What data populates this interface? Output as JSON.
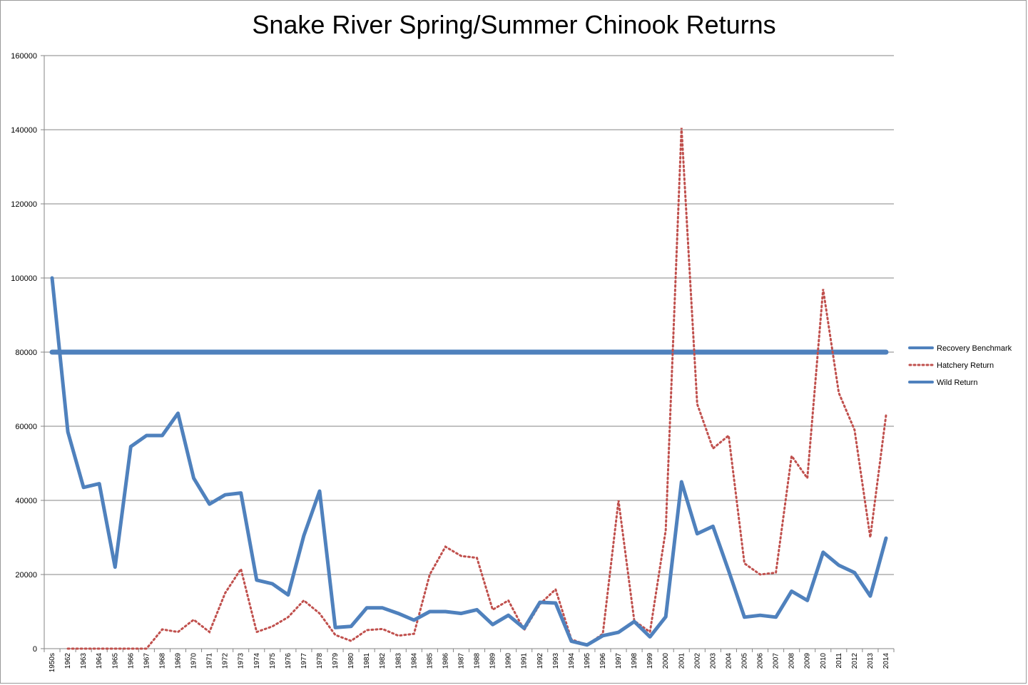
{
  "chart_data": {
    "type": "line",
    "title": "Snake River Spring/Summer Chinook Returns",
    "xlabel": "",
    "ylabel": "",
    "ylim": [
      0,
      160000
    ],
    "yticks": [
      "0",
      "20000",
      "40000",
      "60000",
      "80000",
      "100000",
      "120000",
      "140000",
      "160000"
    ],
    "grid": true,
    "legend_position": "right",
    "categories": [
      "1950s",
      "1962",
      "1963",
      "1964",
      "1965",
      "1966",
      "1967",
      "1968",
      "1969",
      "1970",
      "1971",
      "1972",
      "1973",
      "1974",
      "1975",
      "1976",
      "1977",
      "1978",
      "1979",
      "1980",
      "1981",
      "1982",
      "1983",
      "1984",
      "1985",
      "1986",
      "1987",
      "1988",
      "1989",
      "1990",
      "1991",
      "1992",
      "1993",
      "1994",
      "1995",
      "1996",
      "1997",
      "1998",
      "1999",
      "2000",
      "2001",
      "2002",
      "2003",
      "2004",
      "2005",
      "2006",
      "2007",
      "2008",
      "2009",
      "2010",
      "2011",
      "2012",
      "2013",
      "2014"
    ],
    "series": [
      {
        "name": "Recovery Benchmark",
        "color": "#4f81bd",
        "style": "solid-thick",
        "values": [
          80000,
          80000,
          80000,
          80000,
          80000,
          80000,
          80000,
          80000,
          80000,
          80000,
          80000,
          80000,
          80000,
          80000,
          80000,
          80000,
          80000,
          80000,
          80000,
          80000,
          80000,
          80000,
          80000,
          80000,
          80000,
          80000,
          80000,
          80000,
          80000,
          80000,
          80000,
          80000,
          80000,
          80000,
          80000,
          80000,
          80000,
          80000,
          80000,
          80000,
          80000,
          80000,
          80000,
          80000,
          80000,
          80000,
          80000,
          80000,
          80000,
          80000,
          80000,
          80000,
          80000,
          80000
        ]
      },
      {
        "name": "Hatchery Return",
        "color": "#c0504d",
        "style": "dotted",
        "values": [
          null,
          0,
          0,
          0,
          0,
          0,
          0,
          5200,
          4500,
          7800,
          4500,
          15000,
          21500,
          4500,
          6000,
          8500,
          13000,
          9500,
          3700,
          2100,
          5000,
          5300,
          3500,
          4000,
          20000,
          27500,
          25000,
          24500,
          10500,
          13000,
          5000,
          12000,
          16000,
          2500,
          1000,
          4000,
          40000,
          7500,
          4500,
          32000,
          140500,
          66000,
          54000,
          57500,
          23000,
          20000,
          20500,
          52000,
          46000,
          97000,
          69000,
          59000,
          30000,
          63000
        ]
      },
      {
        "name": "Wild Return",
        "color": "#4f81bd",
        "style": "solid",
        "values": [
          100000,
          58500,
          43500,
          44500,
          22000,
          54500,
          57500,
          57500,
          63500,
          46000,
          39000,
          41500,
          42000,
          18500,
          17500,
          14500,
          30500,
          42500,
          5700,
          6000,
          11000,
          11000,
          9500,
          7700,
          10000,
          10000,
          9500,
          10500,
          6500,
          9000,
          5500,
          12500,
          12300,
          2000,
          1000,
          3500,
          4400,
          7300,
          3200,
          8600,
          45000,
          31000,
          33000,
          21000,
          8500,
          9000,
          8500,
          15500,
          13000,
          26000,
          22500,
          20500,
          14200,
          29800
        ]
      }
    ]
  }
}
